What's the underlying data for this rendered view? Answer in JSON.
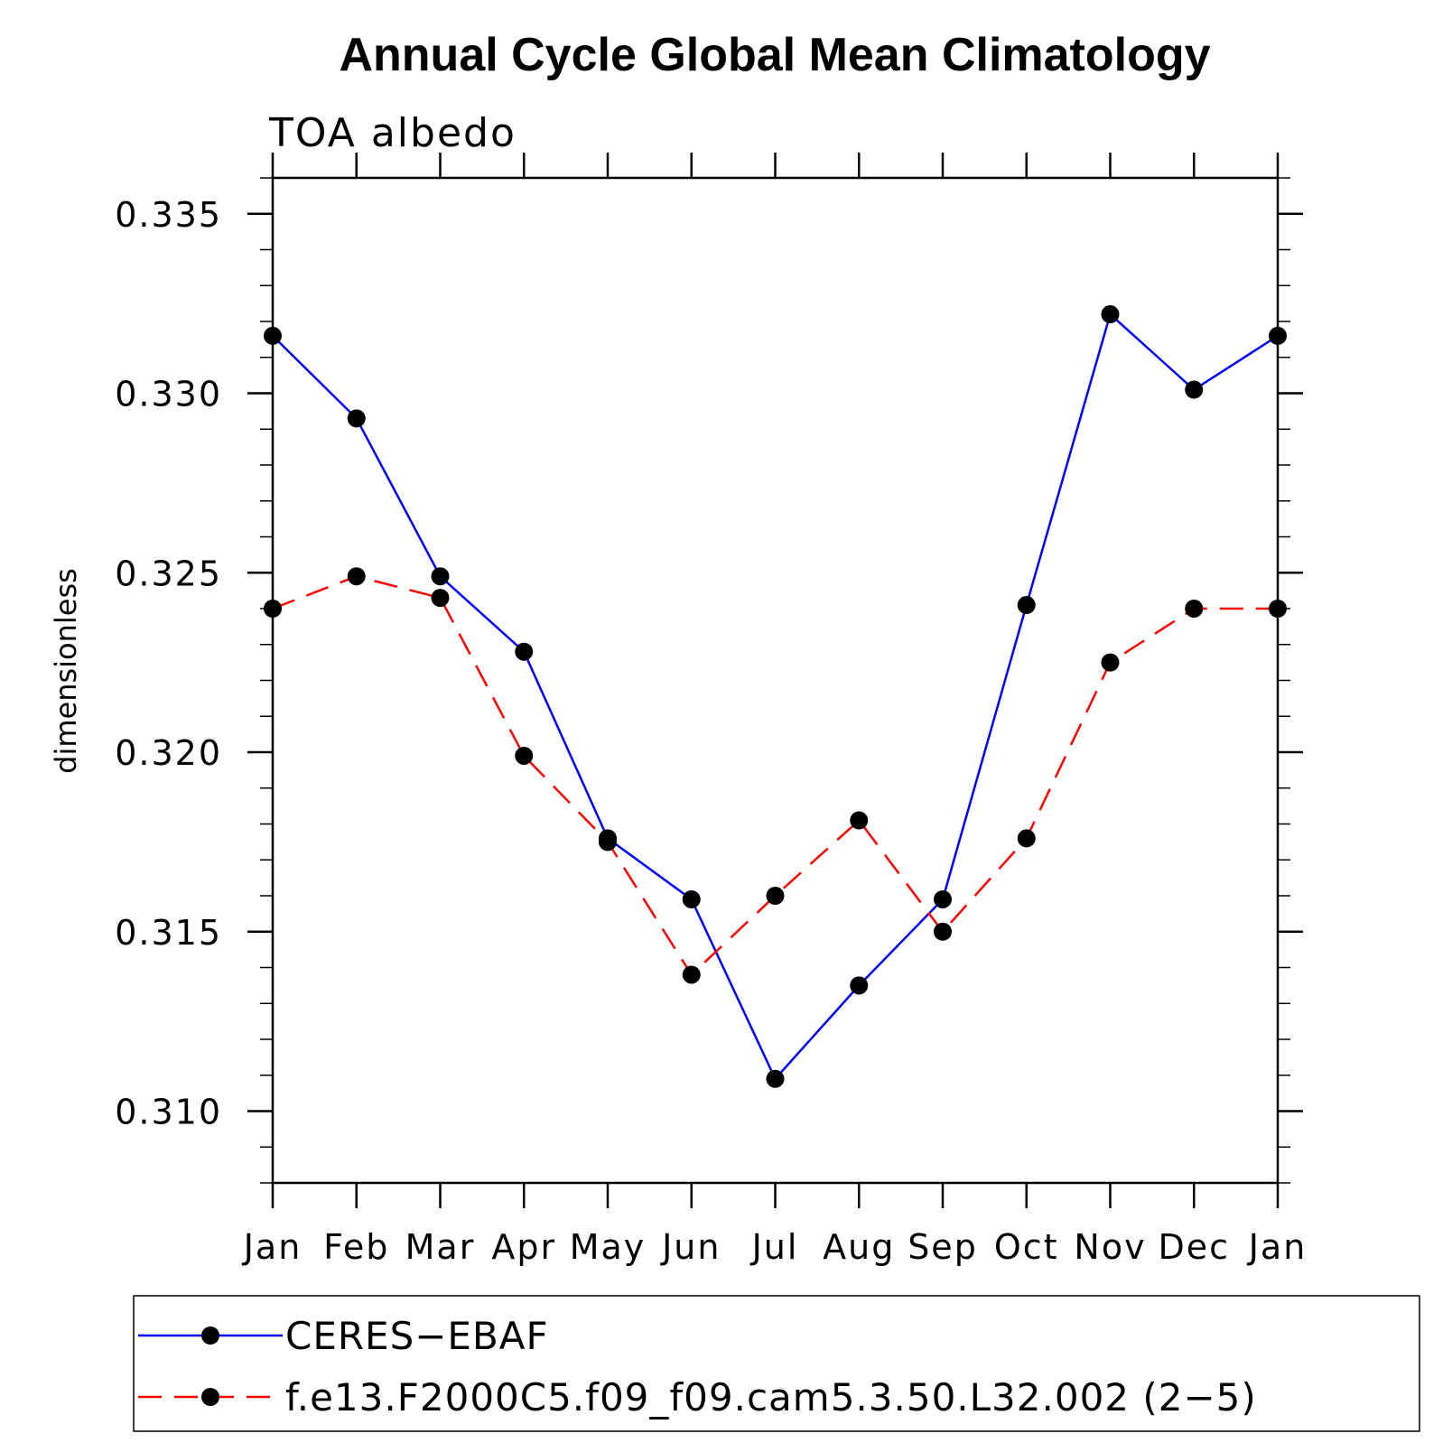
{
  "chart_data": {
    "type": "line",
    "title": "Annual Cycle Global Mean Climatology",
    "subtitle": "TOA albedo",
    "ylabel": "dimensionless",
    "xlabel": "",
    "categories": [
      "Jan",
      "Feb",
      "Mar",
      "Apr",
      "May",
      "Jun",
      "Jul",
      "Aug",
      "Sep",
      "Oct",
      "Nov",
      "Dec",
      "Jan"
    ],
    "ylim": [
      0.308,
      0.336
    ],
    "yticks": [
      "0.310",
      "0.315",
      "0.320",
      "0.325",
      "0.330",
      "0.335"
    ],
    "legend_position": "bottom",
    "series": [
      {
        "name": "CERES−EBAF",
        "color": "#0000ff",
        "dash": "solid",
        "marker": "filled-circle",
        "values": [
          0.3316,
          0.3293,
          0.3249,
          0.3228,
          0.3176,
          0.3159,
          0.3109,
          0.3135,
          0.3159,
          0.3241,
          0.3322,
          0.3301,
          0.3316
        ]
      },
      {
        "name": "f.e13.F2000C5.f09_f09.cam5.3.50.L32.002 (2−5)",
        "color": "#ff0000",
        "dash": "dashed",
        "marker": "filled-circle",
        "values": [
          0.324,
          0.3249,
          0.3243,
          0.3199,
          0.3175,
          0.3138,
          0.316,
          0.3181,
          0.315,
          0.3176,
          0.3225,
          0.324,
          0.324
        ]
      }
    ]
  }
}
